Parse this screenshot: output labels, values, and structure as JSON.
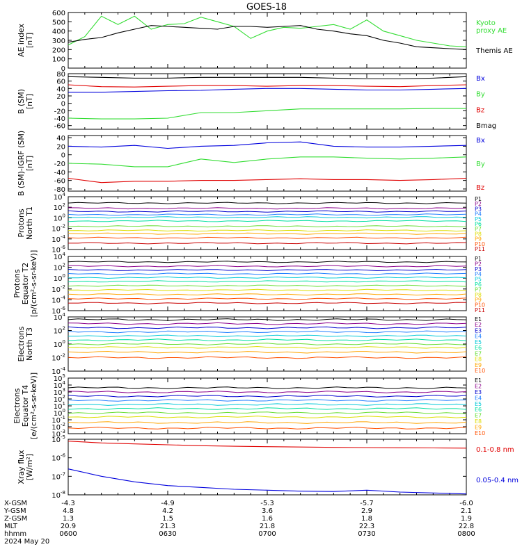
{
  "title": "GOES-18",
  "colors": {
    "black": "#000000",
    "red": "#e00000",
    "green": "#33dd33",
    "blue": "#0000dd",
    "P": [
      "#000000",
      "#8b008b",
      "#0000cd",
      "#1e7fff",
      "#00c8d8",
      "#00e0a0",
      "#66dd33",
      "#dddd00",
      "#ffa500",
      "#ff5000",
      "#c80000"
    ],
    "E": [
      "#000000",
      "#8b008b",
      "#0000cd",
      "#1e7fff",
      "#00c8d8",
      "#00e0a0",
      "#66dd33",
      "#dddd00",
      "#ffa500",
      "#ff5000",
      "#c80000"
    ]
  },
  "x_axis": {
    "ticks": [
      "0600",
      "0630",
      "0700",
      "0730",
      "0800"
    ],
    "rows": [
      {
        "label": "X-GSM",
        "values": [
          "-4.3",
          "-4.9",
          "-5.3",
          "-5.7",
          "-6.0"
        ]
      },
      {
        "label": "Y-GSM",
        "values": [
          "4.8",
          "4.2",
          "3.6",
          "2.9",
          "2.1"
        ]
      },
      {
        "label": "Z-GSM",
        "values": [
          "1.3",
          "1.5",
          "1.6",
          "1.8",
          "1.9"
        ]
      },
      {
        "label": "MLT",
        "values": [
          "20.9",
          "21.3",
          "21.8",
          "22.3",
          "22.8"
        ]
      },
      {
        "label": "hhmm",
        "values": [
          "0600",
          "0630",
          "0700",
          "0730",
          "0800"
        ]
      }
    ],
    "date": "2024 May 20"
  },
  "chart_data": [
    {
      "type": "line",
      "id": "ae",
      "ylabel": [
        "AE index",
        "[nT]"
      ],
      "ylim": [
        0,
        600
      ],
      "yticks": [
        "0",
        "100",
        "200",
        "300",
        "400",
        "500",
        "600"
      ],
      "series": [
        {
          "name": "Kyoto proxy AE",
          "name_lines": [
            "Kyoto",
            "proxy AE"
          ],
          "color": "green",
          "x": [
            0,
            5,
            10,
            15,
            20,
            25,
            30,
            35,
            40,
            45,
            50,
            55,
            60,
            65,
            70,
            75,
            80,
            85,
            90,
            95,
            100,
            105,
            110,
            115,
            120
          ],
          "y": [
            250,
            340,
            560,
            470,
            560,
            420,
            470,
            480,
            550,
            500,
            450,
            320,
            400,
            440,
            430,
            450,
            470,
            420,
            520,
            400,
            350,
            300,
            270,
            240,
            230
          ]
        },
        {
          "name": "Themis AE",
          "name_lines": [
            "Themis AE"
          ],
          "color": "black",
          "x": [
            0,
            5,
            10,
            15,
            20,
            25,
            30,
            35,
            40,
            45,
            50,
            55,
            60,
            65,
            70,
            75,
            80,
            85,
            90,
            95,
            100,
            105,
            110,
            115,
            120
          ],
          "y": [
            280,
            310,
            330,
            380,
            420,
            460,
            450,
            440,
            430,
            420,
            450,
            450,
            440,
            450,
            460,
            420,
            400,
            370,
            350,
            300,
            270,
            230,
            220,
            210,
            200
          ]
        }
      ]
    },
    {
      "type": "line",
      "id": "bsm",
      "ylabel": [
        "B (SM)",
        "[nT]"
      ],
      "ylim": [
        -70,
        80
      ],
      "yticks": [
        "-60",
        "-40",
        "-20",
        "0",
        "20",
        "40",
        "60",
        "80"
      ],
      "series": [
        {
          "name": "Bx",
          "color": "blue",
          "x": [
            0,
            10,
            20,
            30,
            40,
            50,
            60,
            70,
            80,
            90,
            100,
            110,
            120
          ],
          "y": [
            30,
            30,
            32,
            34,
            35,
            38,
            40,
            40,
            38,
            36,
            36,
            38,
            40
          ]
        },
        {
          "name": "By",
          "color": "green",
          "x": [
            0,
            10,
            20,
            30,
            40,
            50,
            60,
            70,
            80,
            90,
            100,
            110,
            120
          ],
          "y": [
            -40,
            -42,
            -42,
            -40,
            -25,
            -25,
            -20,
            -15,
            -15,
            -15,
            -15,
            -14,
            -14
          ]
        },
        {
          "name": "Bz",
          "color": "red",
          "x": [
            0,
            10,
            20,
            30,
            40,
            50,
            60,
            70,
            80,
            90,
            100,
            110,
            120
          ],
          "y": [
            50,
            45,
            44,
            46,
            48,
            48,
            46,
            48,
            48,
            46,
            45,
            48,
            50
          ]
        },
        {
          "name": "Bmag",
          "color": "black",
          "x": [
            0,
            10,
            20,
            30,
            40,
            50,
            60,
            70,
            80,
            90,
            100,
            110,
            120
          ],
          "y": [
            72,
            70,
            68,
            68,
            70,
            70,
            70,
            70,
            68,
            66,
            66,
            68,
            72
          ]
        }
      ]
    },
    {
      "type": "line",
      "id": "bigrf",
      "ylabel": [
        "B (SM)-IGRF (SM)",
        "[nT]"
      ],
      "ylim": [
        -85,
        45
      ],
      "yticks": [
        "-80",
        "-60",
        "-40",
        "-20",
        "0",
        "20",
        "40"
      ],
      "series": [
        {
          "name": "Bx",
          "color": "blue",
          "x": [
            0,
            10,
            20,
            30,
            40,
            50,
            60,
            70,
            80,
            90,
            100,
            110,
            120
          ],
          "y": [
            20,
            18,
            22,
            15,
            20,
            22,
            28,
            30,
            20,
            18,
            18,
            20,
            22
          ]
        },
        {
          "name": "By",
          "color": "green",
          "x": [
            0,
            10,
            20,
            30,
            40,
            50,
            60,
            70,
            80,
            90,
            100,
            110,
            120
          ],
          "y": [
            -20,
            -22,
            -28,
            -28,
            -10,
            -18,
            -10,
            -5,
            -5,
            -8,
            -10,
            -8,
            -5
          ]
        },
        {
          "name": "Bz",
          "color": "red",
          "x": [
            0,
            10,
            20,
            30,
            40,
            50,
            60,
            70,
            80,
            90,
            100,
            110,
            120
          ],
          "y": [
            -55,
            -65,
            -62,
            -62,
            -60,
            -60,
            -58,
            -56,
            -58,
            -58,
            -60,
            -58,
            -55
          ]
        }
      ]
    },
    {
      "type": "line",
      "id": "pnorth",
      "ylog": true,
      "ylabel": [
        "Protons",
        "North T1"
      ],
      "ylim_exp": [
        -6,
        4
      ],
      "yticks_exp": [
        -6,
        -4,
        -2,
        0,
        2,
        4
      ],
      "channels": [
        "P1",
        "P2",
        "P3",
        "P4",
        "P5",
        "P6",
        "P7",
        "P8",
        "P9",
        "P10",
        "P11"
      ],
      "levels_exp": [
        2.8,
        1.8,
        1.2,
        0.6,
        0.1,
        -0.6,
        -1.6,
        -2.4,
        -3.0,
        -3.8,
        -4.8
      ]
    },
    {
      "type": "line",
      "id": "pequator",
      "ylog": true,
      "ylabel": [
        "Protons",
        "Equator T2",
        "[p/(cm²-s-sr-keV)]"
      ],
      "ylim_exp": [
        -6,
        4
      ],
      "yticks_exp": [
        -6,
        -4,
        -2,
        0,
        2,
        4
      ],
      "channels": [
        "P1",
        "P2",
        "P3",
        "P4",
        "P5",
        "P6",
        "P7",
        "P8",
        "P9",
        "P10",
        "P11"
      ],
      "levels_exp": [
        3.0,
        2.2,
        1.5,
        0.8,
        0.1,
        -0.6,
        -1.4,
        -2.2,
        -3.0,
        -3.8,
        -4.6
      ]
    },
    {
      "type": "line",
      "id": "enorth",
      "ylog": true,
      "ylabel": [
        "Electrons",
        "North T3"
      ],
      "ylim_exp": [
        -4,
        4
      ],
      "yticks_exp": [
        -4,
        -2,
        0,
        2,
        4
      ],
      "channels": [
        "E1",
        "E2",
        "E3",
        "E4",
        "E5",
        "E6",
        "E7",
        "E8",
        "E9",
        "E10"
      ],
      "levels_exp": [
        3.6,
        3.0,
        2.4,
        1.8,
        1.2,
        0.6,
        0.0,
        -0.5,
        -1.2,
        -2.0
      ]
    },
    {
      "type": "line",
      "id": "eequator",
      "ylog": true,
      "ylabel": [
        "Electrons",
        "Equator T4",
        "[e/(cm²-s-sr-keV)]"
      ],
      "ylim_exp": [
        -3,
        5
      ],
      "yticks_exp": [
        -3,
        -2,
        -1,
        0,
        1,
        2,
        3,
        4,
        5
      ],
      "channels": [
        "E1",
        "E2",
        "E3",
        "E4",
        "E5",
        "E6",
        "E7",
        "E8",
        "E9",
        "E10"
      ],
      "levels_exp": [
        3.6,
        3.0,
        2.4,
        1.8,
        1.2,
        0.6,
        0.0,
        -0.6,
        -1.4,
        -2.2
      ]
    },
    {
      "type": "line",
      "id": "xray",
      "ylog": true,
      "ylabel": [
        "Xray flux",
        "[W/m²]"
      ],
      "ylim_exp": [
        -8,
        -5
      ],
      "yticks_exp": [
        -8,
        -7,
        -6,
        -5
      ],
      "series": [
        {
          "name": "0.1-0.8 nm",
          "color": "red",
          "x": [
            0,
            10,
            20,
            30,
            40,
            50,
            60,
            70,
            80,
            90,
            100,
            110,
            120
          ],
          "y_exp": [
            -5.1,
            -5.2,
            -5.25,
            -5.3,
            -5.35,
            -5.38,
            -5.4,
            -5.42,
            -5.44,
            -5.45,
            -5.46,
            -5.47,
            -5.48
          ]
        },
        {
          "name": "0.05-0.4 nm",
          "color": "blue",
          "x": [
            0,
            10,
            20,
            30,
            40,
            50,
            60,
            70,
            80,
            90,
            100,
            110,
            120
          ],
          "y_exp": [
            -6.6,
            -7.0,
            -7.3,
            -7.5,
            -7.6,
            -7.7,
            -7.75,
            -7.8,
            -7.82,
            -7.75,
            -7.85,
            -7.9,
            -7.95
          ]
        }
      ]
    }
  ]
}
